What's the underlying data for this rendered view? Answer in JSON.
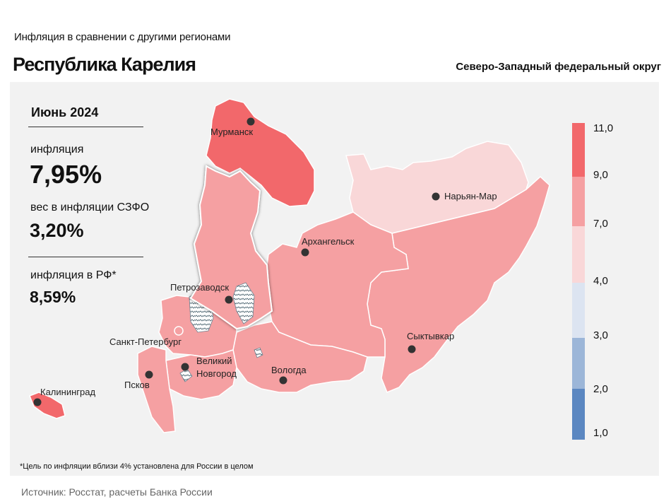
{
  "header": {
    "subtitle": "Инфляция  в сравнении  с другими  регионами",
    "title": "Республика Карелия",
    "district": "Северо-Западный федеральный округ"
  },
  "info": {
    "month": "Июнь 2024",
    "inflation_label": "инфляция",
    "inflation_value": "7,95%",
    "weight_label": "вес в инфляции  СЗФО",
    "weight_value": "3,20%",
    "rf_label": "инфляция  в РФ*",
    "rf_value": "8,59%"
  },
  "cities": {
    "murmansk": "Мурманск",
    "naryan_mar": "Нарьян-Мар",
    "arkhangelsk": "Архангельск",
    "petrozavodsk": "Петрозаводск",
    "spb": "Санкт-Петербург",
    "novgorod_1": "Великий",
    "novgorod_2": "Новгород",
    "pskov": "Псков",
    "vologda": "Вологда",
    "syktyvkar": "Сыктывкар",
    "kaliningrad": "Калининград"
  },
  "legend": {
    "labels": [
      "11,0",
      "9,0",
      "7,0",
      "4,0",
      "3,0",
      "2,0",
      "1,0"
    ],
    "colors": [
      "#f2686b",
      "#f5a0a2",
      "#f9d7d8",
      "#dce4f1",
      "#9cb6d8",
      "#5b87c1"
    ]
  },
  "region_colors": {
    "high": "#f2686b",
    "mid": "#f5a0a2",
    "low": "#f9d7d8"
  },
  "footnote": "*Цель по инфляции вблизи 4% установлена для России в целом",
  "source": "Источник:  Росстат,  расчеты Банка  России"
}
